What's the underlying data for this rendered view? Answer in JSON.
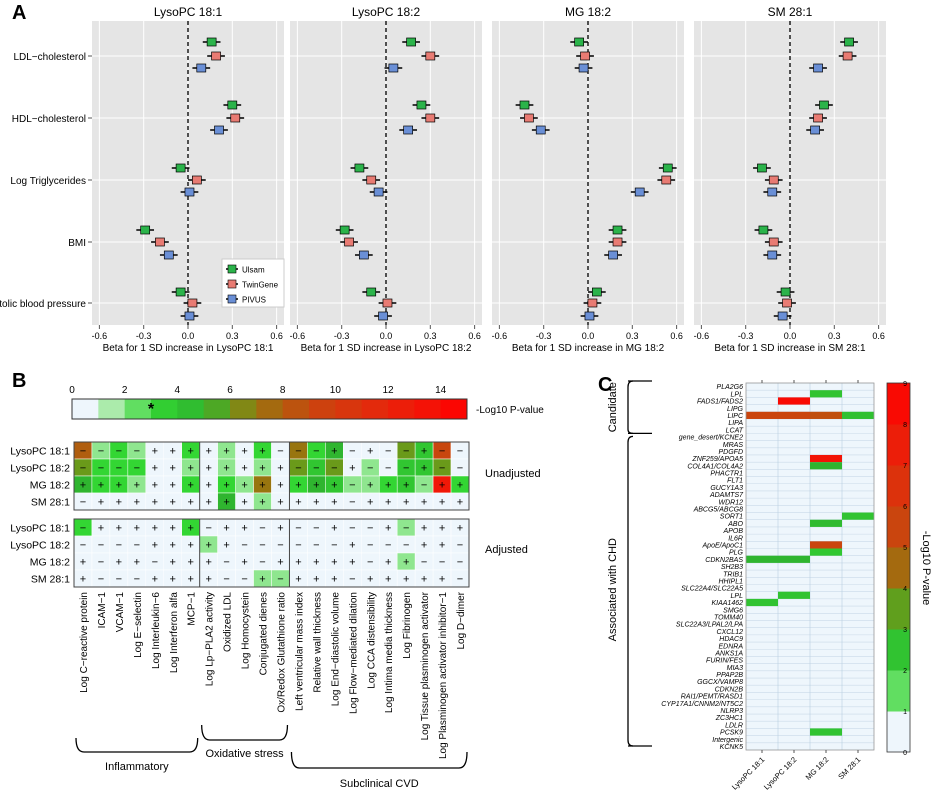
{
  "panel_labels": {
    "a": "A",
    "b": "B",
    "c": "C"
  },
  "colors": {
    "ulsam": "#2bb34a",
    "twingene": "#e87b73",
    "pivus": "#6a8fd6",
    "panel_bg": "#e5e5e5"
  },
  "chart_data": [
    {
      "panel": "A",
      "type": "scatter",
      "subtype": "forest",
      "facets": [
        "LysoPC 18:1",
        "LysoPC 18:2",
        "MG 18:2",
        "SM 28:1"
      ],
      "xlabels": [
        "Beta for 1 SD increase in LysoPC 18:1",
        "Beta for 1 SD increase in LysoPC 18:2",
        "Beta for 1 SD increase in MG 18:2",
        "Beta for 1 SD increase in SM 28:1"
      ],
      "xlim": [
        -0.65,
        0.65
      ],
      "xticks": [
        "-0.6",
        "-0.3",
        "0.0",
        "0.3",
        "0.6"
      ],
      "traits": [
        "LDL−cholesterol",
        "HDL−cholesterol",
        "Log Triglycerides",
        "BMI",
        "Systolic blood pressure"
      ],
      "legend": [
        "Ulsam",
        "TwinGene",
        "PIVUS"
      ],
      "legend_position": "bottom-right",
      "grid": true,
      "values": [
        [
          [
            0.16,
            0.19,
            0.09
          ],
          [
            0.3,
            0.32,
            0.21
          ],
          [
            -0.05,
            0.06,
            0.01
          ],
          [
            -0.29,
            -0.19,
            -0.13
          ],
          [
            -0.05,
            0.03,
            0.01
          ]
        ],
        [
          [
            0.17,
            0.3,
            0.05
          ],
          [
            0.24,
            0.3,
            0.15
          ],
          [
            -0.18,
            -0.1,
            -0.05
          ],
          [
            -0.28,
            -0.25,
            -0.15
          ],
          [
            -0.1,
            0.01,
            -0.02
          ]
        ],
        [
          [
            -0.06,
            -0.02,
            -0.03
          ],
          [
            -0.43,
            -0.4,
            -0.32
          ],
          [
            0.54,
            0.53,
            0.35
          ],
          [
            0.2,
            0.2,
            0.17
          ],
          [
            0.06,
            0.03,
            0.01
          ]
        ],
        [
          [
            0.4,
            0.39,
            0.19
          ],
          [
            0.23,
            0.19,
            0.17
          ],
          [
            -0.19,
            -0.11,
            -0.12
          ],
          [
            -0.18,
            -0.11,
            -0.12
          ],
          [
            -0.03,
            -0.02,
            -0.05
          ]
        ]
      ],
      "ci_halfwidth": 0.06
    },
    {
      "panel": "B",
      "type": "heatmap",
      "colorbar_label": "-Log10 P-value",
      "colorbar_ticks": [
        "0",
        "2",
        "4",
        "6",
        "8",
        "10",
        "12",
        "14"
      ],
      "colorbar_max": 15,
      "colorbar_marker": "*",
      "colorbar_marker_value": 3,
      "groups": [
        "Unadjusted",
        "Adjusted"
      ],
      "rows": [
        "LysoPC 18:1",
        "LysoPC 18:2",
        "MG 18:2",
        "SM 28:1"
      ],
      "columns": [
        "Log C−reactive protein",
        "ICAM−1",
        "VCAM−1",
        "Log E−selectin",
        "Log Interleukin−6",
        "Log Interferon alfa",
        "MCP−1",
        "Log Lp−PLA2 activity",
        "Oxidized LDL",
        "Log Homocystein",
        "Conjugated dienes",
        "Ox/Redox Glutathione ratio",
        "Left ventricular mass index",
        "Relative wall thickness",
        "Log End−diastolic volume",
        "Log Flow−mediated dilation",
        "Log CCA distensibility",
        "Log Intima media thickness",
        "Log Fibrinogen",
        "Log Tissue plasminogen activator",
        "Log Plasminogen activator inhibitor−1",
        "Log D−dimer"
      ],
      "column_groups": [
        {
          "name": "Inflammatory",
          "start": 0,
          "end": 6
        },
        {
          "name": "Oxidative stress",
          "start": 7,
          "end": 11
        },
        {
          "name": "Subclinical CVD",
          "start": 12,
          "end": 21
        }
      ],
      "unadjusted_values": [
        [
          8,
          2,
          3,
          2,
          0,
          0,
          3,
          0,
          2,
          1,
          3,
          1,
          7,
          3,
          5,
          1,
          0,
          1,
          6,
          4,
          9,
          1
        ],
        [
          6,
          3,
          3,
          3,
          0,
          0,
          2,
          0,
          2,
          1,
          2,
          1,
          6,
          4,
          6,
          1,
          2,
          1,
          4,
          4,
          6,
          1
        ],
        [
          5,
          3,
          3,
          2,
          0,
          1,
          3,
          1,
          3,
          2,
          7,
          1,
          3,
          5,
          4,
          2,
          2,
          3,
          4,
          2,
          13,
          3
        ],
        [
          1,
          1,
          1,
          0,
          0,
          0,
          0,
          0,
          5,
          1,
          2,
          1,
          1,
          1,
          1,
          0,
          0,
          0,
          1,
          1,
          1,
          1
        ]
      ],
      "unadjusted_signs": [
        [
          "−",
          "−",
          "−",
          "−",
          "+",
          "+",
          "+",
          "+",
          "+",
          "+",
          "+",
          "−",
          "−",
          "−",
          "+",
          "−",
          "+",
          "−",
          "−",
          "+",
          "−",
          "−"
        ],
        [
          "−",
          "−",
          "−",
          "−",
          "+",
          "+",
          "+",
          "+",
          "+",
          "+",
          "+",
          "+",
          "−",
          "−",
          "−",
          "+",
          "−",
          "−",
          "−",
          "+",
          "−",
          "−"
        ],
        [
          "+",
          "+",
          "+",
          "+",
          "+",
          "+",
          "+",
          "+",
          "+",
          "+",
          "+",
          "+",
          "+",
          "+",
          "+",
          "−",
          "+",
          "+",
          "+",
          "−",
          "+",
          "+"
        ],
        [
          "−",
          "+",
          "+",
          "+",
          "+",
          "+",
          "+",
          "+",
          "+",
          "+",
          "+",
          "+",
          "+",
          "+",
          "+",
          "−",
          "+",
          "+",
          "+",
          "+",
          "+",
          "+"
        ]
      ],
      "adjusted_values": [
        [
          3,
          0,
          0,
          0,
          0,
          0,
          3,
          1,
          1,
          1,
          1,
          0,
          0,
          0,
          0,
          0,
          0,
          0,
          2,
          1,
          1,
          0
        ],
        [
          1,
          0,
          0,
          0,
          0,
          0,
          0,
          2,
          1,
          0,
          1,
          1,
          0,
          0,
          0,
          0,
          0,
          0,
          1,
          1,
          0,
          0
        ],
        [
          0,
          0,
          0,
          0,
          1,
          0,
          0,
          0,
          0,
          0,
          1,
          0,
          0,
          0,
          0,
          0,
          0,
          1,
          2,
          0,
          0,
          0
        ],
        [
          0,
          0,
          0,
          0,
          0,
          0,
          0,
          0,
          0,
          0,
          2,
          2,
          0,
          0,
          0,
          0,
          0,
          0,
          0,
          0,
          0,
          0
        ]
      ],
      "adjusted_signs": [
        [
          "−",
          "+",
          "+",
          "+",
          "+",
          "+",
          "+",
          "−",
          "+",
          "+",
          "−",
          "+",
          "−",
          "−",
          "+",
          "−",
          "−",
          "+",
          "−",
          "+",
          "+",
          "+"
        ],
        [
          "−",
          "−",
          "−",
          "−",
          "+",
          "+",
          "+",
          "+",
          "+",
          "−",
          "−",
          "−",
          "−",
          "−",
          "−",
          "+",
          "−",
          "−",
          "−",
          "+",
          "+",
          "−"
        ],
        [
          "+",
          "−",
          "+",
          "+",
          "−",
          "+",
          "+",
          "+",
          "−",
          "+",
          "−",
          "+",
          "+",
          "+",
          "+",
          "+",
          "−",
          "+",
          "+",
          "−",
          "−",
          "−"
        ],
        [
          "+",
          "−",
          "−",
          "−",
          "+",
          "+",
          "+",
          "+",
          "−",
          "−",
          "+",
          "−",
          "+",
          "+",
          "+",
          "−",
          "+",
          "+",
          "+",
          "+",
          "+",
          "−"
        ]
      ]
    },
    {
      "panel": "C",
      "type": "heatmap",
      "columns": [
        "LysoPC 18:1",
        "LysoPC 18:2",
        "MG 18:2",
        "SM 28:1"
      ],
      "genes": [
        "PLA2G6",
        "LPL",
        "FADS1/FADS2",
        "LIPG",
        "LIPC",
        "LIPA",
        "LCAT",
        "gene_desert/KCNE2",
        "MRAS",
        "PDGFD",
        "ZNF259/APOA5",
        "COL4A1/COL4A2",
        "PHACTR1",
        "FLT1",
        "GUCY1A3",
        "ADAMTS7",
        "WDR12",
        "ABCG5/ABCG8",
        "SORT1",
        "ABO",
        "APOB",
        "IL6R",
        "ApoE/ApoC1",
        "PLG",
        "CDKN2BAS",
        "SH2B3",
        "TRIB1",
        "HHIPL1",
        "SLC22A4/SLC22A5",
        "LPL",
        "KIAA1462",
        "SMG6",
        "TOMM40",
        "SLC22A3/LPAL2/LPA",
        "CXCL12",
        "HDAC9",
        "EDNRA",
        "ANKS1A",
        "FURIN/FES",
        "MIA3",
        "PPAP2B",
        "GGCX/VAMP8",
        "CDKN2B",
        "RAI1/PEMT/RASD1",
        "CYP17A1/CNNM2/NT5C2",
        "NLRP3",
        "ZC3HC1",
        "LDLR",
        "PCSK9",
        "Intergenic",
        "KCNK5"
      ],
      "group_labels": [
        "Candidate",
        "Associated with CHD"
      ],
      "candidate_count": 7,
      "colorbar_label": "-Log10 P-value",
      "colorbar_ticks": [
        "0",
        "1",
        "2",
        "3",
        "4",
        "5",
        "6",
        "7",
        "8",
        "9"
      ],
      "colorbar_max": 9,
      "cells": [
        {
          "row": 1,
          "col": 2,
          "value": 2.5
        },
        {
          "row": 2,
          "col": 1,
          "value": 8.5
        },
        {
          "row": 4,
          "col": 0,
          "value": 5.5
        },
        {
          "row": 4,
          "col": 1,
          "value": 5.5
        },
        {
          "row": 4,
          "col": 2,
          "value": 5.2
        },
        {
          "row": 4,
          "col": 3,
          "value": 2.6
        },
        {
          "row": 10,
          "col": 2,
          "value": 8.0
        },
        {
          "row": 11,
          "col": 2,
          "value": 3.0
        },
        {
          "row": 18,
          "col": 3,
          "value": 2.5
        },
        {
          "row": 19,
          "col": 2,
          "value": 2.8
        },
        {
          "row": 22,
          "col": 2,
          "value": 5.5
        },
        {
          "row": 23,
          "col": 2,
          "value": 2.3
        },
        {
          "row": 24,
          "col": 0,
          "value": 3.0
        },
        {
          "row": 24,
          "col": 1,
          "value": 3.0
        },
        {
          "row": 29,
          "col": 1,
          "value": 2.5
        },
        {
          "row": 30,
          "col": 0,
          "value": 2.5
        },
        {
          "row": 48,
          "col": 2,
          "value": 2.5
        }
      ]
    }
  ]
}
